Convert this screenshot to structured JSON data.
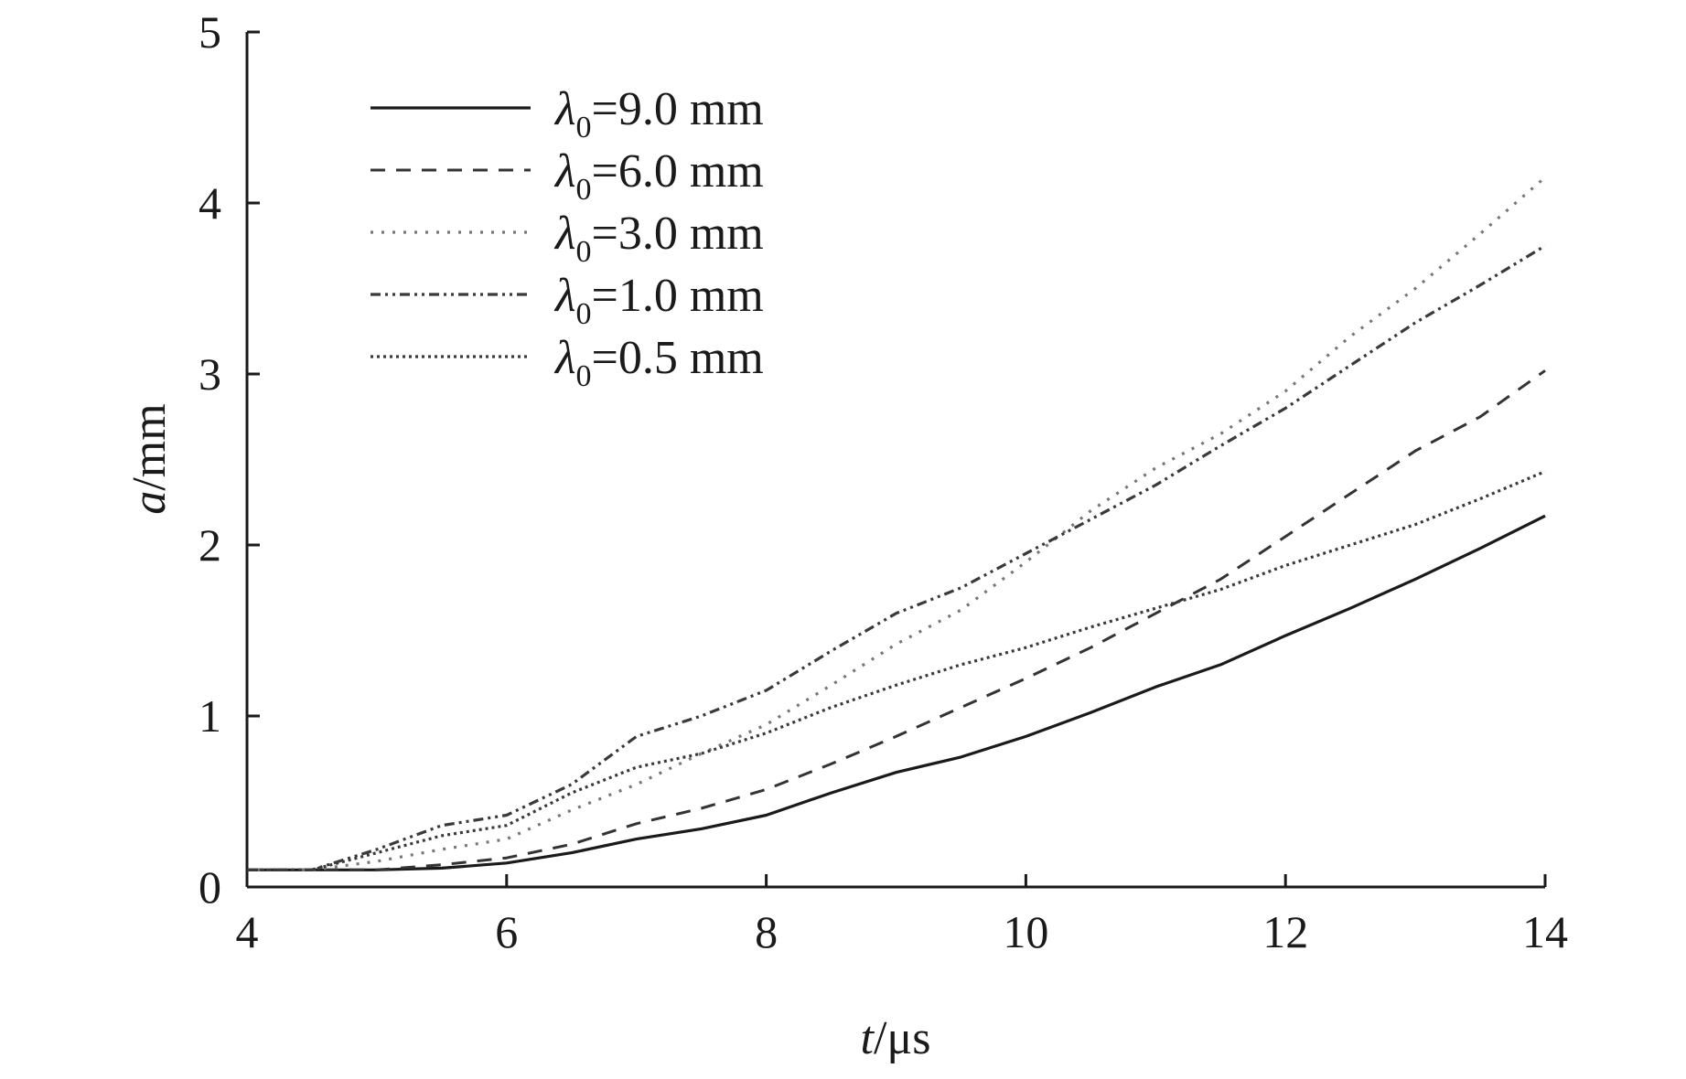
{
  "chart_data": {
    "type": "line",
    "title": "",
    "xlabel": {
      "var": "t",
      "unit": "/μs"
    },
    "ylabel": {
      "var": "a",
      "unit": "/mm"
    },
    "xlim": [
      4,
      14
    ],
    "ylim": [
      0,
      5
    ],
    "xticks": [
      {
        "value": 4,
        "label": "4"
      },
      {
        "value": 6,
        "label": "6"
      },
      {
        "value": 8,
        "label": "8"
      },
      {
        "value": 10,
        "label": "10"
      },
      {
        "value": 12,
        "label": "12"
      },
      {
        "value": 14,
        "label": "14"
      }
    ],
    "yticks": [
      {
        "value": 0,
        "label": "0"
      },
      {
        "value": 1,
        "label": "1"
      },
      {
        "value": 2,
        "label": "2"
      },
      {
        "value": 3,
        "label": "3"
      },
      {
        "value": 4,
        "label": "4"
      },
      {
        "value": 5,
        "label": "5"
      }
    ],
    "grid": false,
    "legend_position": "top-left",
    "series": [
      {
        "name": "λ0=9.0 mm",
        "legend": {
          "sym": "λ",
          "sub": "0",
          "text": "=9.0 mm"
        },
        "style": "solid",
        "color": "#1a1a1a",
        "points": [
          [
            4.0,
            0.1
          ],
          [
            4.5,
            0.1
          ],
          [
            5.0,
            0.1
          ],
          [
            5.5,
            0.11
          ],
          [
            6.0,
            0.14
          ],
          [
            6.5,
            0.2
          ],
          [
            7.0,
            0.28
          ],
          [
            7.5,
            0.34
          ],
          [
            8.0,
            0.42
          ],
          [
            8.5,
            0.55
          ],
          [
            9.0,
            0.67
          ],
          [
            9.5,
            0.76
          ],
          [
            10.0,
            0.88
          ],
          [
            10.5,
            1.02
          ],
          [
            11.0,
            1.17
          ],
          [
            11.5,
            1.3
          ],
          [
            12.0,
            1.47
          ],
          [
            12.5,
            1.63
          ],
          [
            13.0,
            1.8
          ],
          [
            13.5,
            1.98
          ],
          [
            14.0,
            2.17
          ]
        ]
      },
      {
        "name": "λ0=6.0 mm",
        "legend": {
          "sym": "λ",
          "sub": "0",
          "text": "=6.0 mm"
        },
        "style": "dashed",
        "color": "#333333",
        "points": [
          [
            4.0,
            0.1
          ],
          [
            4.5,
            0.1
          ],
          [
            5.0,
            0.1
          ],
          [
            5.5,
            0.13
          ],
          [
            6.0,
            0.17
          ],
          [
            6.5,
            0.25
          ],
          [
            7.0,
            0.37
          ],
          [
            7.5,
            0.46
          ],
          [
            8.0,
            0.57
          ],
          [
            8.5,
            0.72
          ],
          [
            9.0,
            0.88
          ],
          [
            9.5,
            1.05
          ],
          [
            10.0,
            1.22
          ],
          [
            10.5,
            1.4
          ],
          [
            11.0,
            1.6
          ],
          [
            11.5,
            1.8
          ],
          [
            12.0,
            2.05
          ],
          [
            12.5,
            2.3
          ],
          [
            13.0,
            2.55
          ],
          [
            13.5,
            2.75
          ],
          [
            14.0,
            3.02
          ]
        ]
      },
      {
        "name": "λ0=3.0 mm",
        "legend": {
          "sym": "λ",
          "sub": "0",
          "text": "=3.0 mm"
        },
        "style": "dotted-light",
        "color": "#777777",
        "points": [
          [
            4.0,
            0.1
          ],
          [
            4.5,
            0.1
          ],
          [
            5.0,
            0.15
          ],
          [
            5.5,
            0.22
          ],
          [
            6.0,
            0.28
          ],
          [
            6.5,
            0.45
          ],
          [
            7.0,
            0.6
          ],
          [
            7.5,
            0.78
          ],
          [
            8.0,
            0.95
          ],
          [
            8.5,
            1.18
          ],
          [
            9.0,
            1.42
          ],
          [
            9.5,
            1.62
          ],
          [
            10.0,
            1.9
          ],
          [
            10.5,
            2.2
          ],
          [
            11.0,
            2.45
          ],
          [
            11.5,
            2.65
          ],
          [
            12.0,
            2.9
          ],
          [
            12.5,
            3.22
          ],
          [
            13.0,
            3.5
          ],
          [
            13.5,
            3.82
          ],
          [
            14.0,
            4.15
          ]
        ]
      },
      {
        "name": "λ0=1.0 mm",
        "legend": {
          "sym": "λ",
          "sub": "0",
          "text": "=1.0 mm"
        },
        "style": "dash-dot-dot",
        "color": "#3a3a3a",
        "points": [
          [
            4.0,
            0.1
          ],
          [
            4.5,
            0.1
          ],
          [
            5.0,
            0.22
          ],
          [
            5.5,
            0.36
          ],
          [
            6.0,
            0.42
          ],
          [
            6.5,
            0.6
          ],
          [
            7.0,
            0.88
          ],
          [
            7.5,
            1.0
          ],
          [
            8.0,
            1.15
          ],
          [
            8.5,
            1.38
          ],
          [
            9.0,
            1.6
          ],
          [
            9.5,
            1.75
          ],
          [
            10.0,
            1.95
          ],
          [
            10.5,
            2.15
          ],
          [
            11.0,
            2.35
          ],
          [
            11.5,
            2.58
          ],
          [
            12.0,
            2.8
          ],
          [
            12.5,
            3.05
          ],
          [
            13.0,
            3.3
          ],
          [
            13.5,
            3.52
          ],
          [
            14.0,
            3.75
          ]
        ]
      },
      {
        "name": "λ0=0.5 mm",
        "legend": {
          "sym": "λ",
          "sub": "0",
          "text": "=0.5 mm"
        },
        "style": "dotted-dense",
        "color": "#3a3a3a",
        "points": [
          [
            4.0,
            0.1
          ],
          [
            4.5,
            0.1
          ],
          [
            5.0,
            0.2
          ],
          [
            5.5,
            0.3
          ],
          [
            6.0,
            0.36
          ],
          [
            6.5,
            0.55
          ],
          [
            7.0,
            0.7
          ],
          [
            7.5,
            0.78
          ],
          [
            8.0,
            0.9
          ],
          [
            8.5,
            1.05
          ],
          [
            9.0,
            1.18
          ],
          [
            9.5,
            1.3
          ],
          [
            10.0,
            1.4
          ],
          [
            10.5,
            1.52
          ],
          [
            11.0,
            1.63
          ],
          [
            11.5,
            1.74
          ],
          [
            12.0,
            1.88
          ],
          [
            12.5,
            2.0
          ],
          [
            13.0,
            2.12
          ],
          [
            13.5,
            2.27
          ],
          [
            14.0,
            2.43
          ]
        ]
      }
    ]
  }
}
